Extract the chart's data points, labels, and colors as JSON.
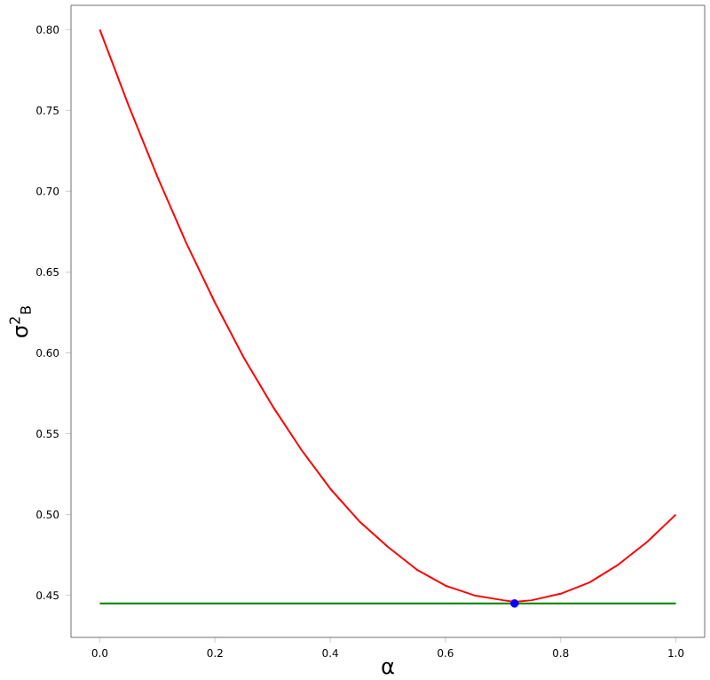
{
  "chart_data": {
    "type": "line",
    "xlabel": "α",
    "ylabel": "σ$^{2}$$_{B}$",
    "xlim": [
      -0.05,
      1.05
    ],
    "ylim": [
      0.424,
      0.815
    ],
    "xticks": [
      {
        "value": 0,
        "label": "0.0"
      },
      {
        "value": 0.2,
        "label": "0.2"
      },
      {
        "value": 0.4,
        "label": "0.4"
      },
      {
        "value": 0.6,
        "label": "0.6"
      },
      {
        "value": 0.8,
        "label": "0.8"
      },
      {
        "value": 1,
        "label": "1.0"
      }
    ],
    "yticks": [
      {
        "value": 0.45,
        "label": "0.45"
      },
      {
        "value": 0.5,
        "label": "0.50"
      },
      {
        "value": 0.55,
        "label": "0.55"
      },
      {
        "value": 0.6,
        "label": "0.60"
      },
      {
        "value": 0.65,
        "label": "0.65"
      },
      {
        "value": 0.7,
        "label": "0.70"
      },
      {
        "value": 0.75,
        "label": "0.75"
      },
      {
        "value": 0.8,
        "label": "0.80"
      }
    ],
    "series": [
      {
        "color": "#ff0000",
        "x": [
          0,
          0.05,
          0.1,
          0.15,
          0.2,
          0.25,
          0.3,
          0.35,
          0.4,
          0.45,
          0.5,
          0.55,
          0.6,
          0.65,
          0.7,
          0.72,
          0.75,
          0.8,
          0.85,
          0.9,
          0.95,
          1.0
        ],
        "values": [
          0.8,
          0.753,
          0.709,
          0.668,
          0.631,
          0.597,
          0.567,
          0.54,
          0.516,
          0.496,
          0.48,
          0.466,
          0.456,
          0.45,
          0.447,
          0.446,
          0.447,
          0.451,
          0.458,
          0.469,
          0.483,
          0.5
        ]
      },
      {
        "type": "line",
        "color": "#008000",
        "x": [
          0,
          1
        ],
        "values": [
          0.445,
          0.445
        ]
      },
      {
        "type": "scatter",
        "color": "#0000ff",
        "marker": "circle",
        "x": [
          0.72
        ],
        "values": [
          0.445
        ]
      }
    ]
  }
}
